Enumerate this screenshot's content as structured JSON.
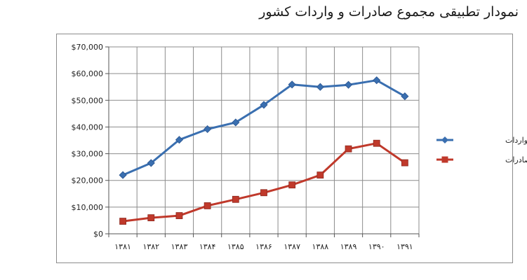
{
  "chart_data": {
    "type": "line",
    "title": "نمودار تطبیقی مجموع صادرات و واردات کشور",
    "categories": [
      "۱۳۸۱",
      "۱۳۸۲",
      "۱۳۸۳",
      "۱۳۸۴",
      "۱۳۸۵",
      "۱۳۸۶",
      "۱۳۸۷",
      "۱۳۸۸",
      "۱۳۸۹",
      "۱۳۹۰",
      "۱۳۹۱"
    ],
    "y_ticks": [
      "$0",
      "$10,000",
      "$20,000",
      "$30,000",
      "$40,000",
      "$50,000",
      "$60,000",
      "$70,000"
    ],
    "ylim": [
      0,
      70000
    ],
    "grid": true,
    "legend_position": "right",
    "series": [
      {
        "name": "رقم واردات",
        "color": "#3a6fb0",
        "values": [
          22000,
          26500,
          35200,
          39200,
          41700,
          48300,
          55900,
          55000,
          55800,
          57500,
          51500
        ]
      },
      {
        "name": "رقم صادرات",
        "color": "#c0392b",
        "values": [
          4700,
          6000,
          6800,
          10500,
          12900,
          15400,
          18300,
          22000,
          31800,
          33900,
          26600
        ]
      }
    ]
  }
}
